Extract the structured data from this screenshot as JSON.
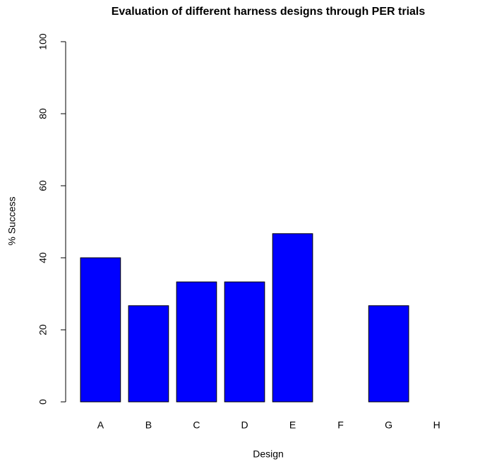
{
  "chart_data": {
    "type": "bar",
    "title": "Evaluation of different harness designs through PER trials",
    "xlabel": "Design",
    "ylabel": "% Success",
    "categories": [
      "A",
      "B",
      "C",
      "D",
      "E",
      "F",
      "G",
      "H"
    ],
    "values": [
      40,
      26.7,
      33.3,
      33.3,
      46.7,
      0,
      26.7,
      0
    ],
    "color": "#0000ff",
    "ylim": [
      0,
      100
    ],
    "yticks": [
      0,
      20,
      40,
      60,
      80,
      100
    ],
    "grid": false
  }
}
